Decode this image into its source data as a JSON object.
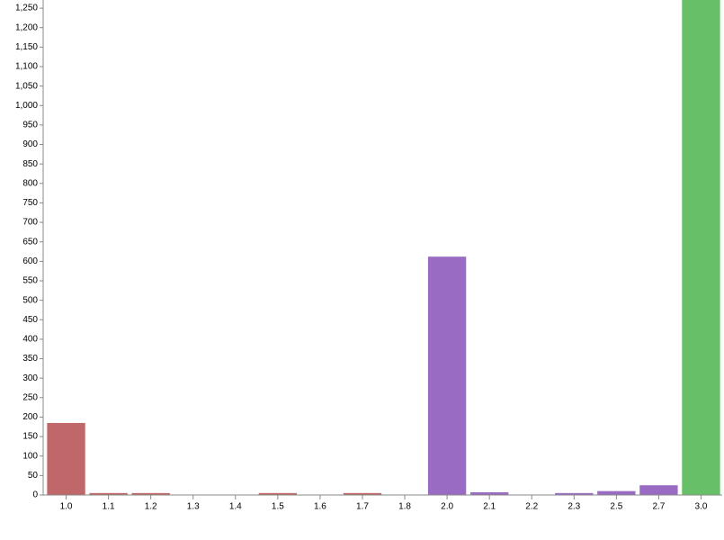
{
  "chart_data": {
    "type": "bar",
    "categories": [
      "1.0",
      "1.1",
      "1.2",
      "1.3",
      "1.4",
      "1.5",
      "1.6",
      "1.7",
      "1.8",
      "2.0",
      "2.1",
      "2.2",
      "2.3",
      "2.5",
      "2.7",
      "3.0"
    ],
    "values": [
      185,
      5,
      5,
      0,
      1,
      5,
      0,
      5,
      0,
      612,
      7,
      0,
      5,
      10,
      25,
      1300
    ],
    "colors": [
      "#c0676a",
      "#c0676a",
      "#c0676a",
      "#c0676a",
      "#c0676a",
      "#c0676a",
      "#c0676a",
      "#c0676a",
      "#c0676a",
      "#9a6bc2",
      "#9a6bc2",
      "#9a6bc2",
      "#9a6bc2",
      "#9a6bc2",
      "#9a6bc2",
      "#67bf67"
    ],
    "ylim": [
      0,
      1271
    ],
    "yticks": [
      0,
      50,
      100,
      150,
      200,
      250,
      300,
      350,
      400,
      450,
      500,
      550,
      600,
      650,
      700,
      750,
      800,
      850,
      900,
      950,
      {
        "value": 1000,
        "label": "1,000"
      },
      {
        "value": 1050,
        "label": "1,050"
      },
      {
        "value": 1100,
        "label": "1,100"
      },
      {
        "value": 1150,
        "label": "1,150"
      },
      {
        "value": 1200,
        "label": "1,200"
      },
      {
        "value": 1250,
        "label": "1,250"
      }
    ]
  }
}
